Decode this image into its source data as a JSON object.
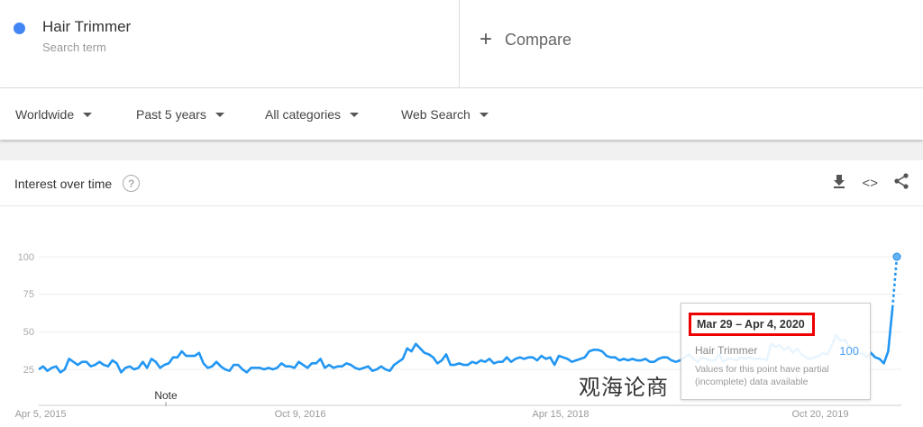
{
  "search_term": {
    "name": "Hair Trimmer",
    "subtitle": "Search term",
    "color": "#4285f4"
  },
  "compare": {
    "icon": "plus-icon",
    "label": "Compare"
  },
  "filters": [
    {
      "label": "Worldwide"
    },
    {
      "label": "Past 5 years"
    },
    {
      "label": "All categories"
    },
    {
      "label": "Web Search"
    }
  ],
  "card": {
    "title": "Interest over time",
    "icons": [
      "help-icon",
      "download-icon",
      "embed-icon",
      "share-icon"
    ]
  },
  "tooltip": {
    "date": "Mar 29 – Apr 4, 2020",
    "term": "Hair Trimmer",
    "value": "100",
    "note": "Values for this point have partial (incomplete) data available"
  },
  "watermark": "观海论商",
  "chart_data": {
    "type": "line",
    "title": "Interest over time",
    "ylim": [
      0,
      100
    ],
    "yticks": [
      "25",
      "50",
      "75",
      "100"
    ],
    "xticks": [
      "Apr 5, 2015",
      "Oct 9, 2016",
      "Apr 15, 2018",
      "Oct 20, 2019"
    ],
    "annotation": "Note",
    "grid": true,
    "color": "#2196f3",
    "series": [
      {
        "name": "Hair Trimmer",
        "values": [
          25,
          27,
          24,
          26,
          27,
          23,
          25,
          32,
          30,
          28,
          30,
          30,
          27,
          28,
          30,
          28,
          27,
          31,
          29,
          23,
          26,
          27,
          25,
          26,
          30,
          26,
          32,
          30,
          26,
          28,
          29,
          33,
          33,
          37,
          34,
          34,
          34,
          36,
          29,
          26,
          27,
          30,
          27,
          25,
          24,
          28,
          28,
          25,
          23,
          26,
          26,
          26,
          25,
          26,
          25,
          26,
          29,
          27,
          27,
          26,
          30,
          28,
          26,
          29,
          29,
          32,
          26,
          28,
          26,
          27,
          27,
          29,
          28,
          26,
          25,
          26,
          27,
          24,
          25,
          27,
          25,
          24,
          28,
          30,
          32,
          39,
          37,
          42,
          39,
          36,
          35,
          33,
          29,
          31,
          35,
          28,
          28,
          29,
          28,
          28,
          30,
          29,
          31,
          30,
          32,
          29,
          30,
          30,
          33,
          30,
          32,
          33,
          32,
          33,
          33,
          31,
          34,
          32,
          33,
          28,
          34,
          33,
          32,
          30,
          31,
          32,
          33,
          37,
          38,
          38,
          37,
          34,
          33,
          33,
          31,
          32,
          31,
          32,
          31,
          31,
          32,
          30,
          30,
          32,
          33,
          33,
          31,
          30,
          31,
          33,
          35,
          32,
          30,
          33,
          32,
          31,
          31,
          35,
          30,
          32,
          32,
          31,
          33,
          32,
          33,
          32,
          32,
          32,
          31,
          42,
          40,
          41,
          38,
          40,
          36,
          39,
          35,
          33,
          32,
          33,
          34,
          36,
          35,
          41,
          48,
          44,
          45,
          40,
          38,
          35,
          36,
          33,
          36,
          33,
          32,
          29,
          37,
          66,
          100
        ]
      }
    ],
    "partial_last_point": true
  }
}
